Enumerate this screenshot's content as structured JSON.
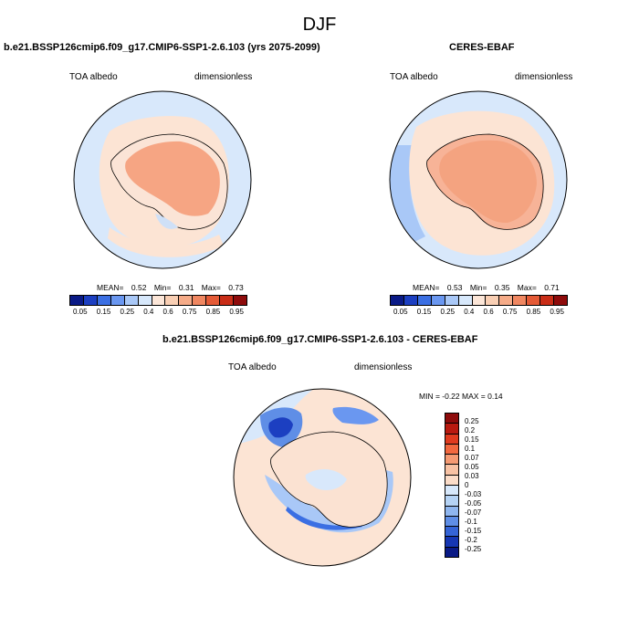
{
  "title": "DJF",
  "panels": [
    {
      "title": "b.e21.BSSP126cmip6.f09_g17.CMIP6-SSP1-2.6.103 (yrs 2075-2099)",
      "left_label": "TOA albedo",
      "right_label": "dimensionless",
      "stats": {
        "mean_label": "MEAN=",
        "mean": "0.52",
        "min_label": "Min=",
        "min": "0.31",
        "max_label": "Max=",
        "max": "0.73"
      }
    },
    {
      "title": "CERES-EBAF",
      "left_label": "TOA albedo",
      "right_label": "dimensionless",
      "stats": {
        "mean_label": "MEAN=",
        "mean": "0.53",
        "min_label": "Min=",
        "min": "0.35",
        "max_label": "Max=",
        "max": "0.71"
      }
    },
    {
      "title": "b.e21.BSSP126cmip6.f09_g17.CMIP6-SSP1-2.6.103 - CERES-EBAF",
      "left_label": "TOA albedo",
      "right_label": "dimensionless",
      "stats_text": "MIN = -0.22 MAX = 0.14"
    }
  ],
  "colorbar_top": {
    "colors": [
      "#0a1a86",
      "#1c3fc1",
      "#3b6fe3",
      "#6a97f0",
      "#a9c8f7",
      "#d7e8fb",
      "#fce6d8",
      "#f9cfb4",
      "#f5ab88",
      "#f08761",
      "#e45a36",
      "#c92d17",
      "#8e0b0b"
    ],
    "tick_labels": [
      "0.05",
      "0.15",
      "0.25",
      "0.4",
      "0.6",
      "0.75",
      "0.85",
      "0.95"
    ]
  },
  "colorbar_diff": {
    "colors": [
      "#8e0b0b",
      "#b91a10",
      "#e03b1f",
      "#f2683f",
      "#f59a73",
      "#f8c2a4",
      "#fbdcc8",
      "#d7e8fb",
      "#b5d3f5",
      "#8fb6ef",
      "#5f8ee6",
      "#3564d6",
      "#1637b3",
      "#0a1a86"
    ],
    "tick_labels": [
      "0.25",
      "0.2",
      "0.15",
      "0.1",
      "0.07",
      "0.05",
      "0.03",
      "0",
      "-0.03",
      "-0.05",
      "-0.07",
      "-0.1",
      "-0.15",
      "-0.2",
      "-0.25"
    ]
  }
}
